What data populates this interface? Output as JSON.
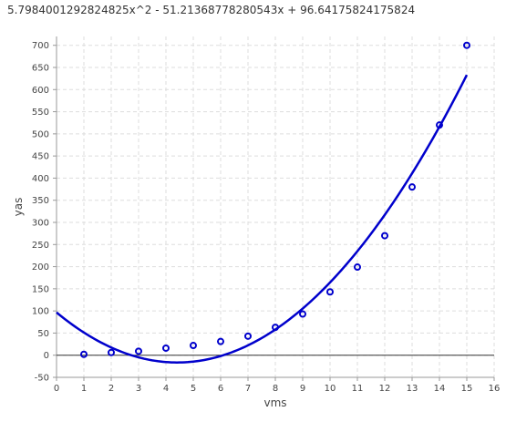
{
  "chart_data": {
    "type": "scatter",
    "title": "5.7984001292824825x^2 - 51.21368778280543x + 96.64175824175824",
    "xlabel": "vms",
    "ylabel": "yas",
    "xlim": [
      0,
      16
    ],
    "ylim": [
      -50,
      720
    ],
    "xticks": [
      0,
      1,
      2,
      3,
      4,
      5,
      6,
      7,
      8,
      9,
      10,
      11,
      12,
      13,
      14,
      15,
      16
    ],
    "yticks": [
      -50,
      0,
      50,
      100,
      150,
      200,
      250,
      300,
      350,
      400,
      450,
      500,
      550,
      600,
      650,
      700
    ],
    "grid": true,
    "series": [
      {
        "type": "scatter",
        "x": [
          1,
          2,
          3,
          4,
          5,
          6,
          7,
          8,
          9,
          10,
          11,
          12,
          13,
          14,
          15
        ],
        "y": [
          2,
          6,
          9,
          16,
          22,
          31,
          43,
          63,
          93,
          143,
          199,
          270,
          380,
          520,
          700
        ]
      },
      {
        "type": "line",
        "coefficients": [
          5.7984001292824825,
          -51.21368778280543,
          96.64175824175824
        ],
        "x_range": [
          0,
          15
        ]
      }
    ],
    "colors": {
      "series": "#0000cc",
      "zero_line": "#333333",
      "grid": "#dddddd",
      "axis": "#999999"
    }
  }
}
